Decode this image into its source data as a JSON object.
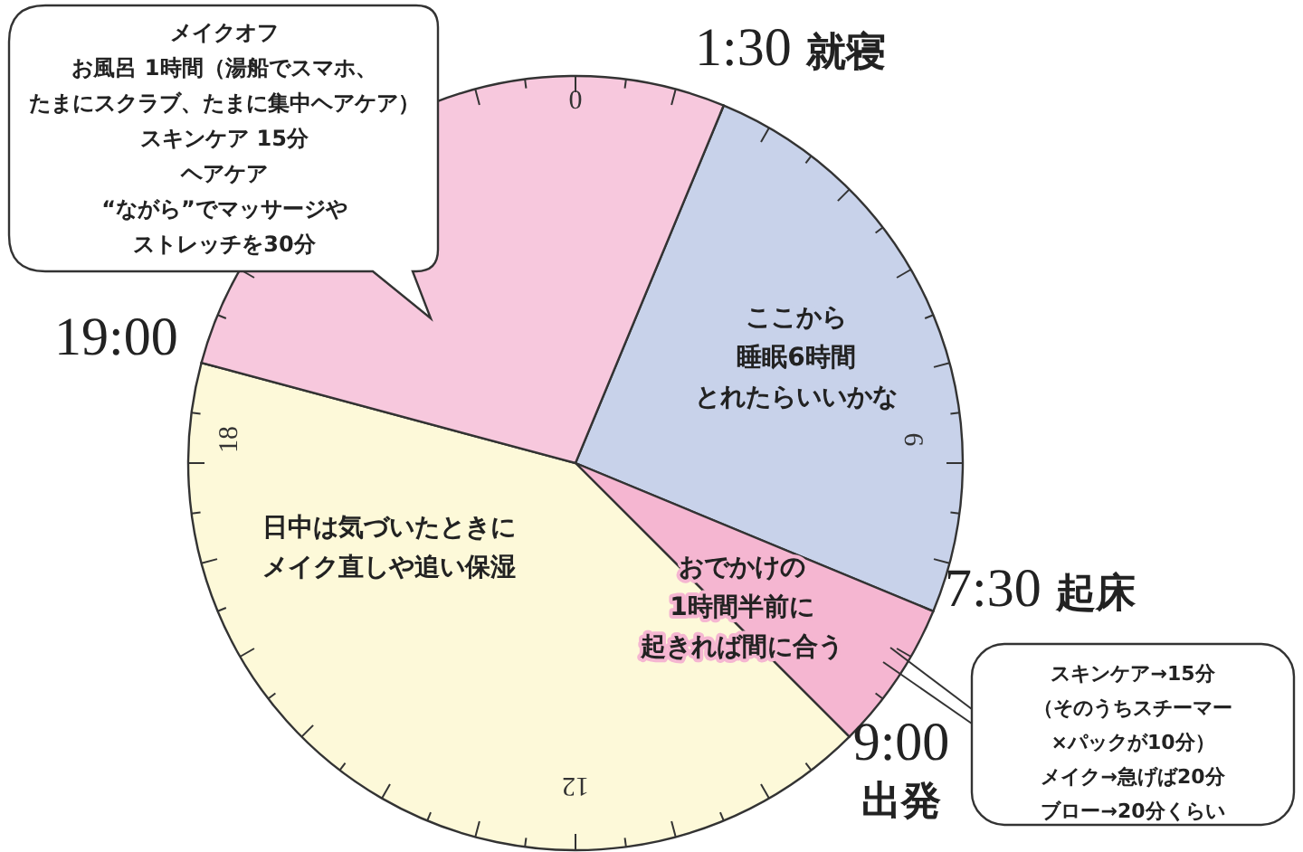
{
  "chart_data": {
    "type": "pie",
    "categories": [
      "ここから睡眠6時間とれたらいいかな",
      "おでかけの1時間半前に起きれば間に合う",
      "日中は気づいたときにメイク直しや追い保湿",
      null
    ],
    "values": [
      25,
      6.25,
      41.67,
      27.08
    ],
    "colors": [
      "#c8d2ea",
      "#f5b6d1",
      "#fdf9d9",
      "#f7c8dd"
    ],
    "annotations": [
      "1:30 就寝",
      "7:30 起床",
      "9:00\n出発",
      "19:00",
      "0",
      "6",
      "12",
      "18",
      "メイクオフお風呂 1時間（湯船でスマホ、たまにスクラブ、たまに集中ヘアケア）スキンケア 15分ヘアケア“ながら”でマッサージやストレッチを30分",
      "スキンケア→15分（そのうちスチーマー×パックが10分）メイク→急げば20分ブロー→20分くらい"
    ]
  }
}
